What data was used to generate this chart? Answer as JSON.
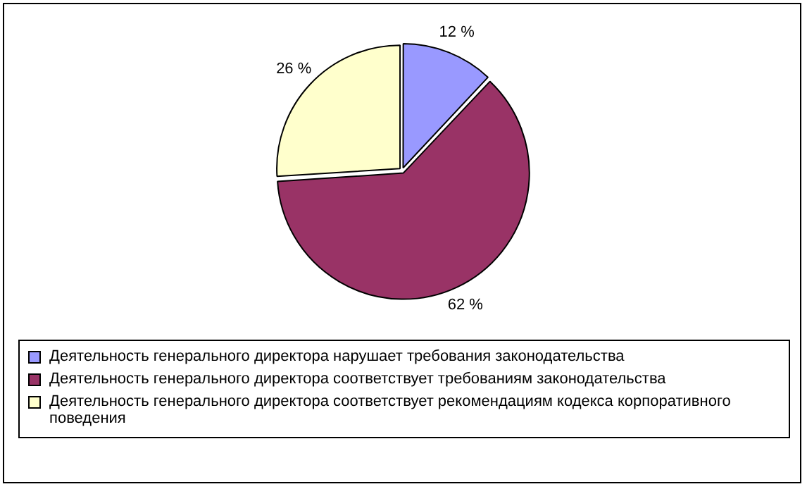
{
  "chart_data": {
    "type": "pie",
    "categories": [
      "Деятельность генерального директора нарушает требования законодательства",
      "Деятельность генерального директора соответствует требованиям законодательства",
      "Деятельность генерального директора соответствует рекомендациям кодекса корпоративного поведения"
    ],
    "values": [
      12,
      62,
      26
    ],
    "colors": [
      "#9999ff",
      "#993366",
      "#ffffcc"
    ],
    "value_labels": [
      "12 %",
      "62 %",
      "26 %"
    ],
    "legend": "bottom"
  }
}
